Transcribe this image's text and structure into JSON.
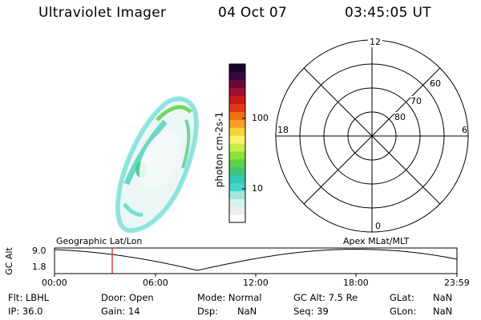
{
  "header": {
    "instrument": "Ultraviolet Imager",
    "date": "04 Oct 07",
    "time": "03:45:05 UT"
  },
  "colorbar": {
    "label": "photon cm-2s-1",
    "ticks": [
      "100",
      "10"
    ],
    "colors": [
      "#ffffff",
      "#eeeeee",
      "#d8f0ec",
      "#9ee6df",
      "#41d6c8",
      "#35c9b5",
      "#3cc77a",
      "#5fd04a",
      "#8ee03a",
      "#c6ee4a",
      "#f4f56a",
      "#f8d23c",
      "#f5a023",
      "#ee6f12",
      "#e23a16",
      "#c81a18",
      "#a01030",
      "#6b0a3a",
      "#3a0740",
      "#1a0428"
    ]
  },
  "polar_plot": {
    "mlt_labels": [
      "12",
      "18",
      "6",
      "0"
    ],
    "lat_labels": [
      "60",
      "70",
      "80"
    ]
  },
  "timeline": {
    "left_title": "Geographic Lat/Lon",
    "right_title": "Apex MLat/MLT",
    "axis_label": "GC Alt",
    "y_ticks": [
      "9.0",
      "1.8"
    ],
    "x_ticks": [
      "00:00",
      "06:00",
      "12:00",
      "18:00",
      "23:59"
    ],
    "marker_color": "#e02020"
  },
  "info": {
    "flt": "Flt: LBHL",
    "ip": "IP: 36.0",
    "door": "Door: Open",
    "gain": "Gain: 14",
    "mode": "Mode: Normal",
    "dsp_label": "Dsp:",
    "dsp_value": "NaN",
    "gcalt": "GC Alt: 7.5 Re",
    "seq": "Seq: 39",
    "glat_label": "GLat:",
    "glat_value": "NaN",
    "glon_label": "GLon:",
    "glon_value": "NaN"
  }
}
